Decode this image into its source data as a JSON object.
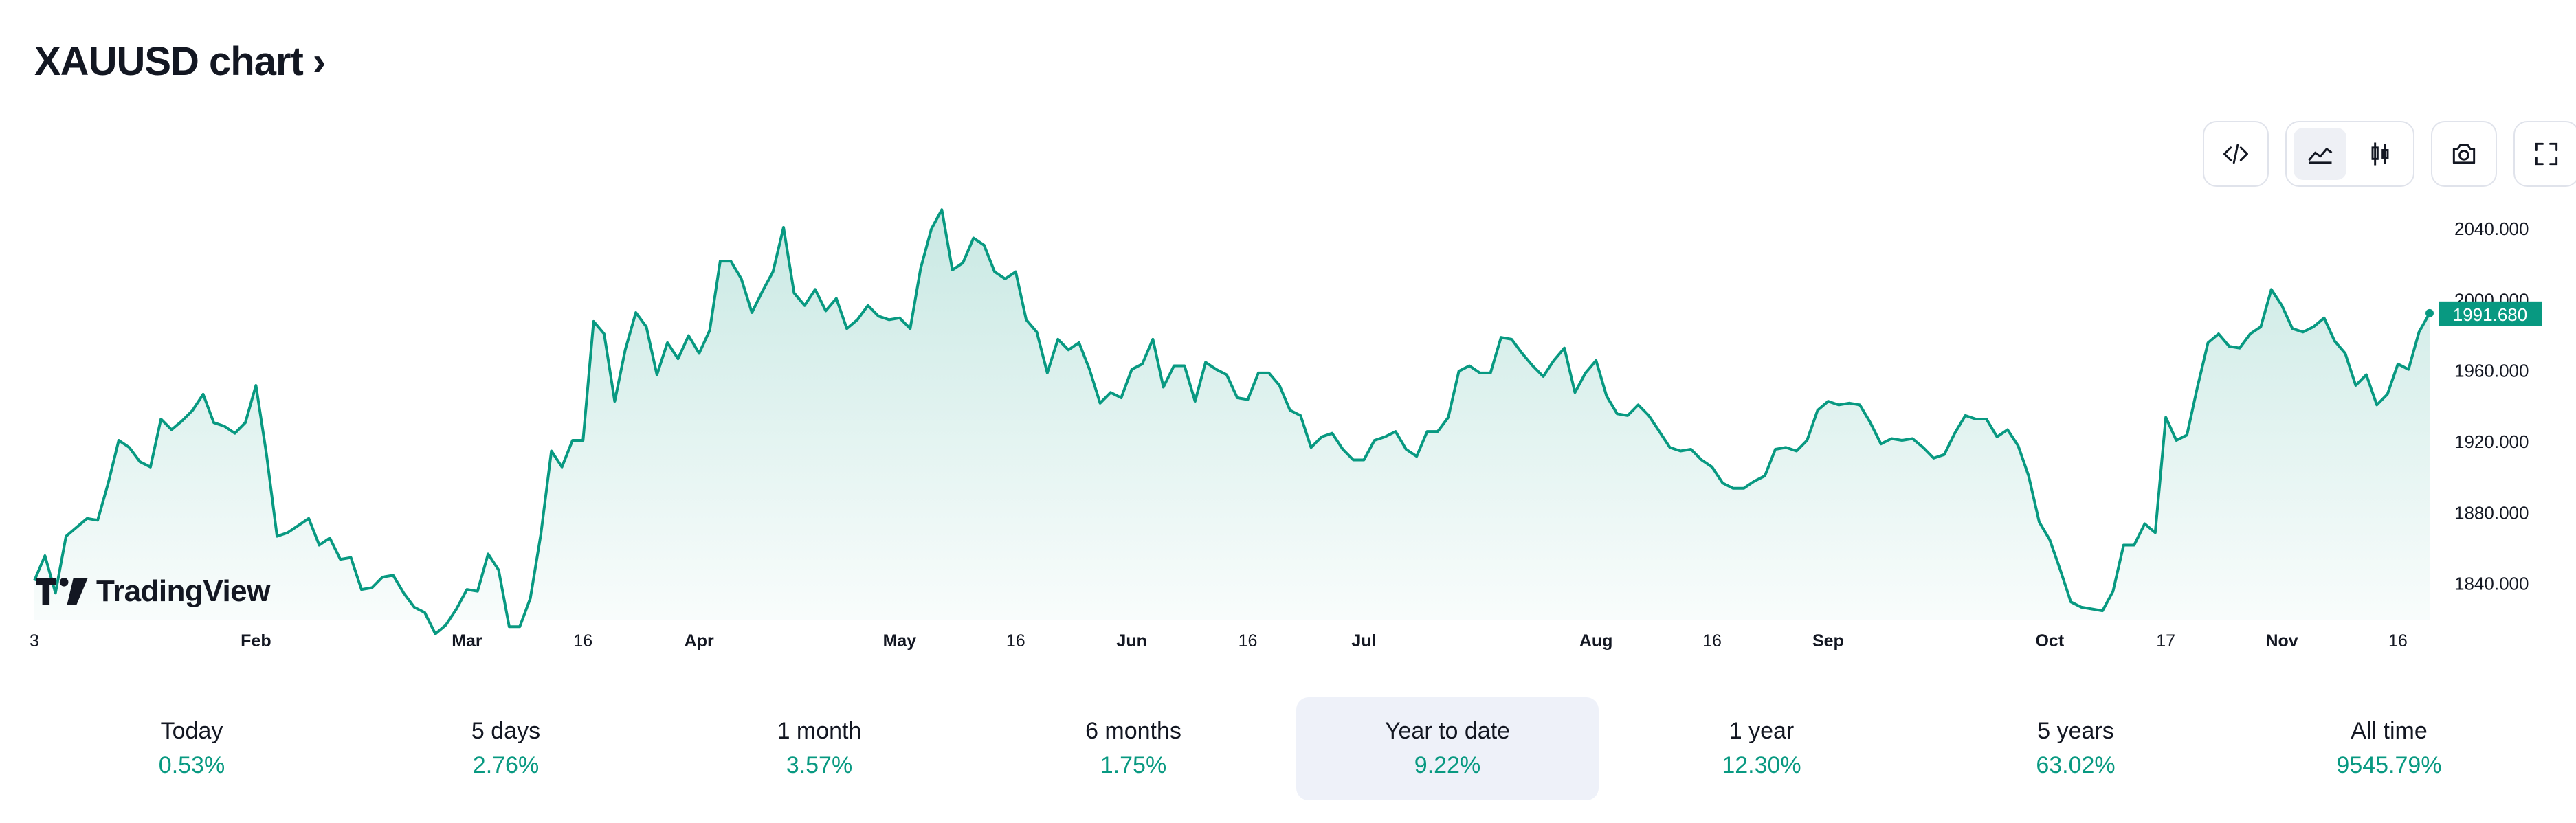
{
  "header": {
    "title": "XAUUSD chart",
    "chevron": "›"
  },
  "toolbar": {
    "embed_icon": "code-icon",
    "area_icon": "area-chart-icon",
    "candle_icon": "candlestick-icon",
    "snapshot_icon": "camera-icon",
    "fullscreen_icon": "fullscreen-icon",
    "active_style": "area"
  },
  "brand": {
    "name": "TradingView"
  },
  "colors": {
    "line": "#089981",
    "fill_top": "rgba(8,153,129,0.22)",
    "fill_bottom": "rgba(8,153,129,0.02)",
    "badge": "#089981"
  },
  "chart_data": {
    "type": "area",
    "symbol": "XAUUSD",
    "ylim": [
      1819,
      2052
    ],
    "y_ticks": [
      "2040.000",
      "2000.000",
      "1960.000",
      "1920.000",
      "1880.000",
      "1840.000"
    ],
    "y_tick_values": [
      2040,
      2000,
      1960,
      1920,
      1880,
      1840
    ],
    "last_value_label": "1991.680",
    "last_value": 1991.68,
    "x_ticks": [
      {
        "label": "3",
        "i": 0,
        "bold": false
      },
      {
        "label": "Feb",
        "i": 21,
        "bold": true
      },
      {
        "label": "Mar",
        "i": 41,
        "bold": true
      },
      {
        "label": "16",
        "i": 52,
        "bold": false
      },
      {
        "label": "Apr",
        "i": 63,
        "bold": true
      },
      {
        "label": "May",
        "i": 82,
        "bold": true
      },
      {
        "label": "16",
        "i": 93,
        "bold": false
      },
      {
        "label": "Jun",
        "i": 104,
        "bold": true
      },
      {
        "label": "16",
        "i": 115,
        "bold": false
      },
      {
        "label": "Jul",
        "i": 126,
        "bold": true
      },
      {
        "label": "Aug",
        "i": 148,
        "bold": true
      },
      {
        "label": "16",
        "i": 159,
        "bold": false
      },
      {
        "label": "Sep",
        "i": 170,
        "bold": true
      },
      {
        "label": "Oct",
        "i": 191,
        "bold": true
      },
      {
        "label": "17",
        "i": 202,
        "bold": false
      },
      {
        "label": "Nov",
        "i": 213,
        "bold": true
      },
      {
        "label": "16",
        "i": 224,
        "bold": false
      }
    ],
    "values": [
      1841,
      1855,
      1834,
      1866,
      1871,
      1876,
      1875,
      1896,
      1920,
      1916,
      1908,
      1905,
      1932,
      1926,
      1931,
      1937,
      1946,
      1930,
      1928,
      1924,
      1930,
      1951,
      1912,
      1866,
      1868,
      1872,
      1876,
      1861,
      1865,
      1853,
      1854,
      1836,
      1837,
      1843,
      1844,
      1834,
      1826,
      1823,
      1811,
      1816,
      1825,
      1836,
      1835,
      1856,
      1847,
      1815,
      1815,
      1831,
      1867,
      1914,
      1905,
      1920,
      1920,
      1987,
      1980,
      1942,
      1971,
      1992,
      1984,
      1957,
      1975,
      1966,
      1979,
      1969,
      1982,
      2021,
      2021,
      2011,
      1992,
      2004,
      2015,
      2040,
      2003,
      1996,
      2005,
      1993,
      2000,
      1983,
      1988,
      1996,
      1990,
      1988,
      1989,
      1983,
      2017,
      2039,
      2050,
      2016,
      2020,
      2034,
      2030,
      2015,
      2011,
      2015,
      1988,
      1981,
      1958,
      1977,
      1971,
      1975,
      1960,
      1941,
      1947,
      1944,
      1960,
      1963,
      1977,
      1950,
      1962,
      1962,
      1942,
      1964,
      1960,
      1957,
      1944,
      1943,
      1958,
      1958,
      1951,
      1937,
      1934,
      1916,
      1922,
      1924,
      1915,
      1909,
      1909,
      1920,
      1922,
      1925,
      1915,
      1911,
      1925,
      1925,
      1933,
      1959,
      1962,
      1958,
      1958,
      1978,
      1977,
      1969,
      1962,
      1956,
      1965,
      1972,
      1947,
      1958,
      1965,
      1945,
      1935,
      1934,
      1940,
      1934,
      1925,
      1916,
      1914,
      1915,
      1909,
      1905,
      1896,
      1893,
      1893,
      1897,
      1900,
      1915,
      1916,
      1914,
      1920,
      1937,
      1942,
      1940,
      1941,
      1940,
      1930,
      1918,
      1921,
      1920,
      1921,
      1916,
      1910,
      1912,
      1924,
      1934,
      1932,
      1932,
      1922,
      1926,
      1917,
      1900,
      1874,
      1864,
      1847,
      1829,
      1826,
      1825,
      1824,
      1835,
      1861,
      1861,
      1873,
      1868,
      1933,
      1920,
      1923,
      1950,
      1975,
      1980,
      1973,
      1972,
      1980,
      1984,
      2005,
      1996,
      1983,
      1981,
      1984,
      1989,
      1976,
      1969,
      1951,
      1957,
      1940,
      1946,
      1963,
      1960,
      1981,
      1991.68
    ]
  },
  "periods": [
    {
      "label": "Today",
      "value": "0.53%",
      "active": false
    },
    {
      "label": "5 days",
      "value": "2.76%",
      "active": false
    },
    {
      "label": "1 month",
      "value": "3.57%",
      "active": false
    },
    {
      "label": "6 months",
      "value": "1.75%",
      "active": false
    },
    {
      "label": "Year to date",
      "value": "9.22%",
      "active": true
    },
    {
      "label": "1 year",
      "value": "12.30%",
      "active": false
    },
    {
      "label": "5 years",
      "value": "63.02%",
      "active": false
    },
    {
      "label": "All time",
      "value": "9545.79%",
      "active": false
    }
  ]
}
